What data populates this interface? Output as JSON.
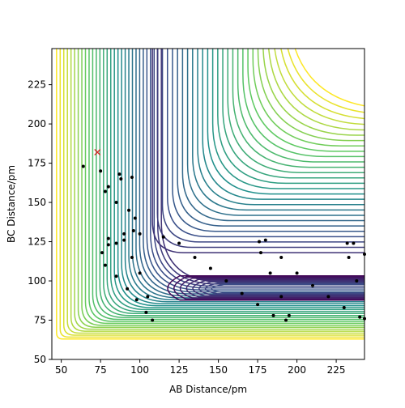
{
  "chart_data": {
    "type": "contour",
    "xlabel": "AB Distance/pm",
    "ylabel": "BC Distance/pm",
    "xlim": [
      44,
      243
    ],
    "ylim": [
      50,
      248
    ],
    "xticks": [
      50,
      75,
      100,
      125,
      150,
      175,
      200,
      225
    ],
    "yticks": [
      50,
      75,
      100,
      125,
      150,
      175,
      200,
      225
    ],
    "trajectory": {
      "color": "#000000",
      "x": [
        64,
        75,
        87,
        95,
        88,
        80,
        78,
        85,
        93,
        97,
        96,
        90,
        80,
        76,
        78,
        85,
        92,
        98,
        104,
        108,
        105,
        100,
        95,
        85,
        80,
        90,
        100,
        115,
        125,
        135,
        145,
        155,
        165,
        175,
        185,
        193,
        195,
        190,
        183,
        177,
        176,
        180,
        190,
        200,
        210,
        220,
        230,
        240,
        243,
        238,
        233,
        232,
        236,
        243
      ],
      "y": [
        173,
        170,
        168,
        166,
        165,
        160,
        157,
        150,
        145,
        140,
        132,
        126,
        123,
        118,
        110,
        103,
        95,
        88,
        80,
        75,
        90,
        105,
        115,
        124,
        127,
        130,
        130,
        128,
        124,
        115,
        108,
        100,
        92,
        85,
        78,
        75,
        78,
        90,
        105,
        118,
        125,
        126,
        115,
        105,
        97,
        90,
        83,
        77,
        76,
        100,
        115,
        124,
        124,
        117
      ]
    },
    "marker": {
      "x": 73,
      "y": 182,
      "color": "#d62728"
    }
  }
}
